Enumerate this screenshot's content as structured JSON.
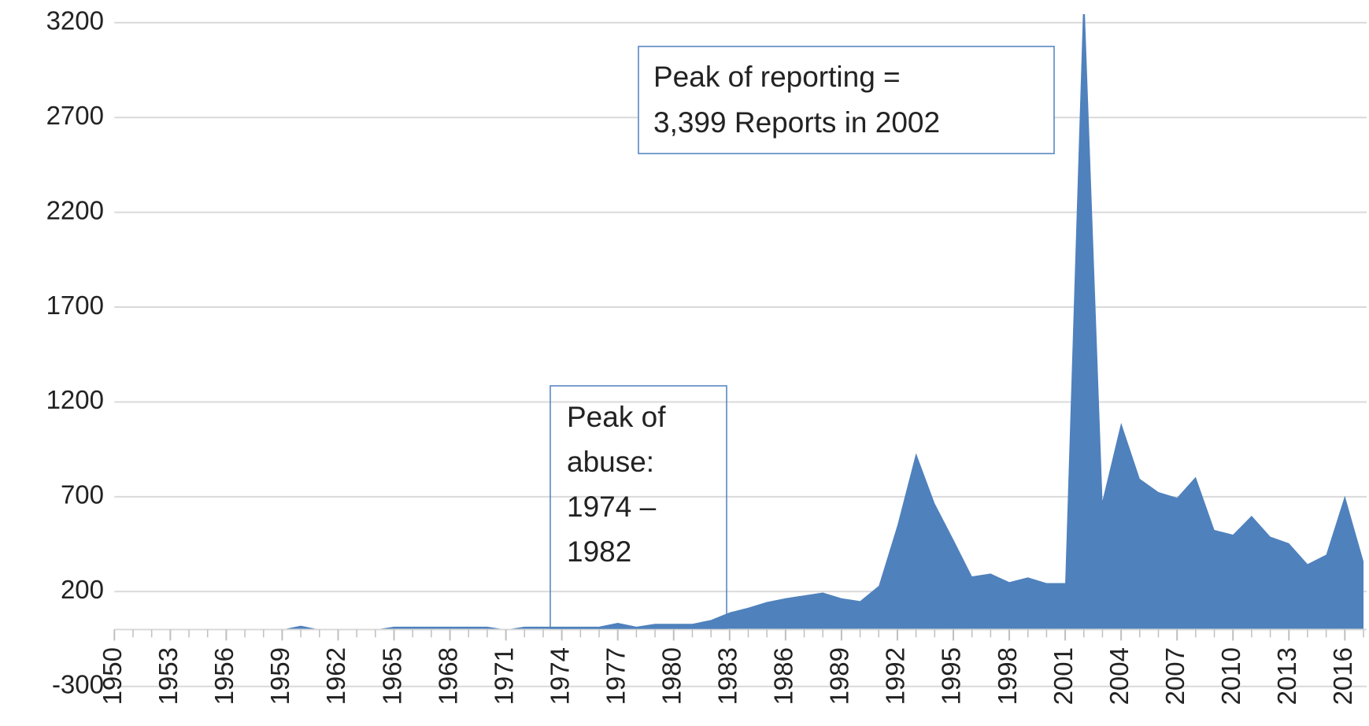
{
  "chart_data": {
    "type": "area",
    "x": [
      1950,
      1951,
      1952,
      1953,
      1954,
      1955,
      1956,
      1957,
      1958,
      1959,
      1960,
      1961,
      1962,
      1963,
      1964,
      1965,
      1966,
      1967,
      1968,
      1969,
      1970,
      1971,
      1972,
      1973,
      1974,
      1975,
      1976,
      1977,
      1978,
      1979,
      1980,
      1981,
      1982,
      1983,
      1984,
      1985,
      1986,
      1987,
      1988,
      1989,
      1990,
      1991,
      1992,
      1993,
      1994,
      1995,
      1996,
      1997,
      1998,
      1999,
      2000,
      2001,
      2002,
      2003,
      2004,
      2005,
      2006,
      2007,
      2008,
      2009,
      2010,
      2011,
      2012,
      2013,
      2014,
      2015,
      2016,
      2017
    ],
    "series": [
      {
        "name": "Reports",
        "color": "#4f81bd",
        "values": [
          0,
          0,
          0,
          0,
          0,
          0,
          0,
          0,
          0,
          0,
          20,
          0,
          0,
          0,
          0,
          15,
          15,
          15,
          15,
          15,
          15,
          0,
          15,
          15,
          15,
          15,
          15,
          35,
          15,
          30,
          30,
          30,
          50,
          90,
          115,
          145,
          165,
          180,
          195,
          165,
          150,
          230,
          550,
          930,
          665,
          475,
          280,
          295,
          250,
          275,
          245,
          245,
          3399,
          680,
          1090,
          795,
          725,
          695,
          805,
          525,
          500,
          600,
          490,
          455,
          345,
          395,
          705,
          360
        ]
      }
    ],
    "xlim": [
      1950,
      2017
    ],
    "xticks": [
      1950,
      1953,
      1956,
      1959,
      1962,
      1965,
      1968,
      1971,
      1974,
      1977,
      1980,
      1983,
      1986,
      1989,
      1992,
      1995,
      1998,
      2001,
      2004,
      2007,
      2010,
      2013,
      2016
    ],
    "ylim": [
      -300,
      3200
    ],
    "yticks": [
      -300,
      200,
      700,
      1200,
      1700,
      2200,
      2700,
      3200
    ],
    "grid": true,
    "annotations": [
      {
        "lines": [
          "Peak of reporting =",
          "3,399 Reports in 2002"
        ]
      },
      {
        "lines": [
          "Peak of",
          "abuse:",
          "1974 –",
          "1982"
        ]
      }
    ]
  }
}
